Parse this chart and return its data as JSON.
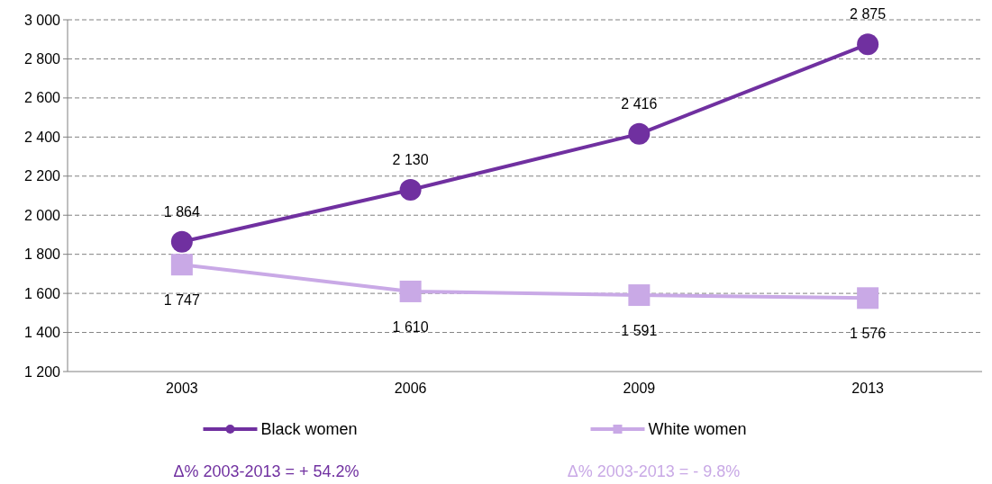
{
  "chart_data": {
    "type": "line",
    "categories": [
      "2003",
      "2006",
      "2009",
      "2013"
    ],
    "series": [
      {
        "name": "Black women",
        "color": "#7030a0",
        "marker": "circle",
        "values": [
          1864,
          2130,
          2416,
          2875
        ],
        "value_labels": [
          "1 864",
          "2 130",
          "2 416",
          "2 875"
        ]
      },
      {
        "name": "White women",
        "color": "#c9a9e6",
        "marker": "square",
        "values": [
          1747,
          1610,
          1591,
          1576
        ],
        "value_labels": [
          "1 747",
          "1 610",
          "1 591",
          "1 576"
        ]
      }
    ],
    "ylim": [
      1200,
      3000
    ],
    "yticks": [
      {
        "value": 1200,
        "label": "1 200"
      },
      {
        "value": 1400,
        "label": "1 400"
      },
      {
        "value": 1600,
        "label": "1 600"
      },
      {
        "value": 1800,
        "label": "1 800"
      },
      {
        "value": 2000,
        "label": "2 000"
      },
      {
        "value": 2200,
        "label": "2 200"
      },
      {
        "value": 2400,
        "label": "2 400"
      },
      {
        "value": 2600,
        "label": "2 600"
      },
      {
        "value": 2800,
        "label": "2 800"
      },
      {
        "value": 3000,
        "label": "3 000"
      }
    ],
    "grid": "y",
    "legend": "bottom",
    "line_style": "solid",
    "annotations": [
      "Δ% 2003-2013 = + 54.2%",
      "Δ% 2003-2013 = - 9.8%"
    ]
  }
}
